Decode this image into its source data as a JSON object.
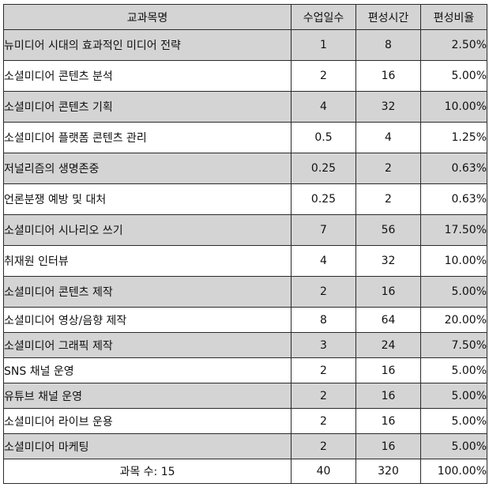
{
  "headers": {
    "subject": "교과목명",
    "days": "수업일수",
    "hours": "편성시간",
    "ratio": "편성비율"
  },
  "rows": [
    {
      "subject": "뉴미디어 시대의 효과적인 미디어 전략",
      "days": "1",
      "hours": "8",
      "ratio": "2.50%"
    },
    {
      "subject": "소셜미디어 콘텐츠 분석",
      "days": "2",
      "hours": "16",
      "ratio": "5.00%"
    },
    {
      "subject": "소셜미디어 콘텐츠 기획",
      "days": "4",
      "hours": "32",
      "ratio": "10.00%"
    },
    {
      "subject": "소셜미디어 플랫폼 콘텐츠 관리",
      "days": "0.5",
      "hours": "4",
      "ratio": "1.25%"
    },
    {
      "subject": "저널리즘의 생명존중",
      "days": "0.25",
      "hours": "2",
      "ratio": "0.63%"
    },
    {
      "subject": "언론분쟁 예방 및 대처",
      "days": "0.25",
      "hours": "2",
      "ratio": "0.63%"
    },
    {
      "subject": "소셜미디어 시나리오 쓰기",
      "days": "7",
      "hours": "56",
      "ratio": "17.50%"
    },
    {
      "subject": "취재원 인터뷰",
      "days": "4",
      "hours": "32",
      "ratio": "10.00%"
    },
    {
      "subject": "소셜미디어 콘텐츠 제작",
      "days": "2",
      "hours": "16",
      "ratio": "5.00%"
    },
    {
      "subject": "소셜미디어 영상/음향 제작",
      "days": "8",
      "hours": "64",
      "ratio": "20.00%"
    },
    {
      "subject": "소셜미디어 그래픽 제작",
      "days": "3",
      "hours": "24",
      "ratio": "7.50%"
    },
    {
      "subject": "SNS 채널 운영",
      "days": "2",
      "hours": "16",
      "ratio": "5.00%"
    },
    {
      "subject": "유튜브 채널 운영",
      "days": "2",
      "hours": "16",
      "ratio": "5.00%"
    },
    {
      "subject": "소셜미디어 라이브 운용",
      "days": "2",
      "hours": "16",
      "ratio": "5.00%"
    },
    {
      "subject": "소셜미디어 마케팅",
      "days": "2",
      "hours": "16",
      "ratio": "5.00%"
    }
  ],
  "total": {
    "label": "과목 수: 15",
    "days": "40",
    "hours": "320",
    "ratio": "100.00%"
  }
}
